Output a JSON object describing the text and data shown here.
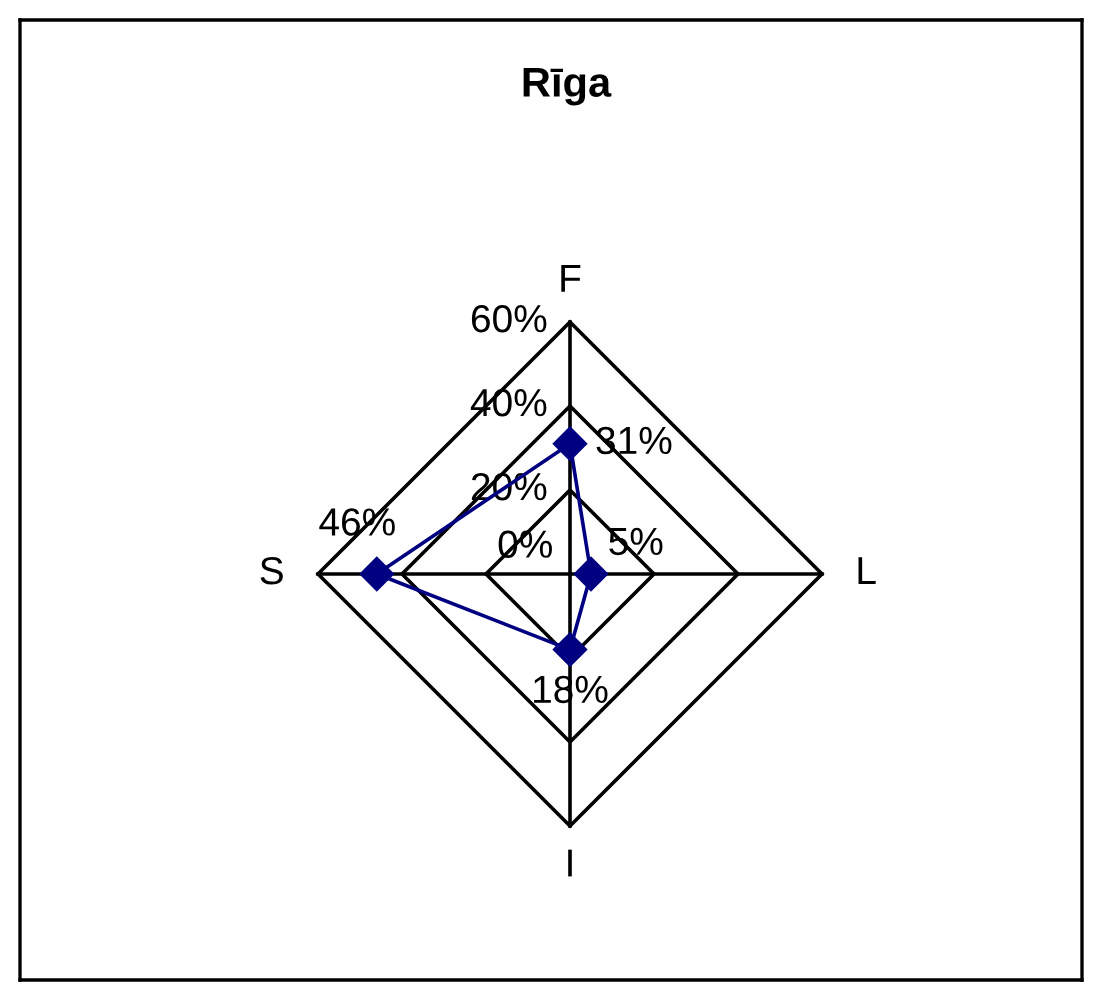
{
  "chart_data": {
    "type": "radar",
    "title": "Rīga",
    "categories": [
      "F",
      "L",
      "I",
      "S"
    ],
    "series": [
      {
        "color": "#000080",
        "values": [
          31,
          5,
          18,
          46
        ],
        "value_labels": [
          "31%",
          "5%",
          "18%",
          "46%"
        ]
      }
    ],
    "ylim": [
      0,
      60
    ],
    "yticks": [
      {
        "value": 0,
        "label": "0%"
      },
      {
        "value": 20,
        "label": "20%"
      },
      {
        "value": 40,
        "label": "40%"
      },
      {
        "value": 60,
        "label": "60%"
      }
    ],
    "grid": true,
    "marker": "diamond",
    "line_style": "solid"
  }
}
